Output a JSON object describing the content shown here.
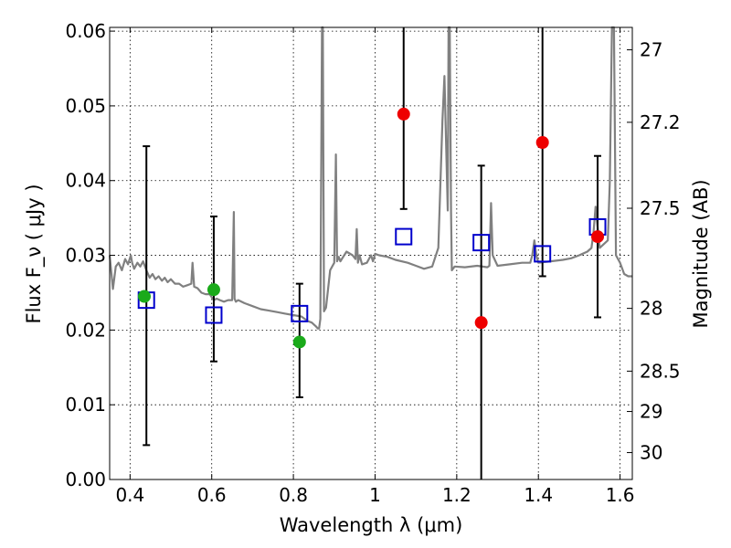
{
  "chart_data": {
    "type": "scatter",
    "title": "",
    "xlabel": "Wavelength  λ (μm)",
    "ylabel": "Flux  F_ν  ( μJy )",
    "y2label": "Magnitude (AB)",
    "xlim": [
      0.35,
      1.63
    ],
    "ylim": [
      0.0,
      0.0605
    ],
    "grid": true,
    "x_ticks": [
      0.4,
      0.6,
      0.8,
      1.0,
      1.2,
      1.4,
      1.6
    ],
    "x_tick_labels": [
      "0.4",
      "0.6",
      "0.8",
      "1",
      "1.2",
      "1.4",
      "1.6"
    ],
    "y_ticks": [
      0.0,
      0.01,
      0.02,
      0.03,
      0.04,
      0.05,
      0.06
    ],
    "y_tick_labels": [
      "0.00",
      "0.01",
      "0.02",
      "0.03",
      "0.04",
      "0.05",
      "0.06"
    ],
    "y2_ticks": [
      {
        "label": "27",
        "flux": 0.0575
      },
      {
        "label": "27.2",
        "flux": 0.0478
      },
      {
        "label": "27.5",
        "flux": 0.0363
      },
      {
        "label": "28",
        "flux": 0.0229
      },
      {
        "label": "28.5",
        "flux": 0.0145
      },
      {
        "label": "29",
        "flux": 0.0091
      },
      {
        "label": "30",
        "flux": 0.0036
      }
    ],
    "observed": {
      "marker": "open-square",
      "color": "#0000cc",
      "x": [
        0.44,
        0.605,
        0.815,
        1.07,
        1.26,
        1.41,
        1.545
      ],
      "y": [
        0.024,
        0.022,
        0.0222,
        0.0325,
        0.0317,
        0.0302,
        0.0338
      ],
      "err_low": [
        0.0046,
        0.0158,
        0.011,
        0.0362,
        0.0,
        0.0272,
        0.0217
      ],
      "err_high": [
        0.0446,
        0.0352,
        0.0262,
        0.0605,
        0.042,
        0.0605,
        0.0433
      ]
    },
    "model_green": {
      "marker": "filled-circle",
      "color": "#1aaa1a",
      "x": [
        0.435,
        0.605,
        0.815
      ],
      "y": [
        0.0245,
        0.0254,
        0.0184
      ]
    },
    "model_red": {
      "marker": "filled-circle",
      "color": "#ee0000",
      "x": [
        1.07,
        1.26,
        1.41,
        1.545
      ],
      "y": [
        0.0489,
        0.021,
        0.0451,
        0.0325
      ]
    },
    "model_spectrum": {
      "color": "#808080",
      "x": [
        0.35,
        0.358,
        0.365,
        0.372,
        0.38,
        0.388,
        0.395,
        0.402,
        0.405,
        0.41,
        0.418,
        0.425,
        0.432,
        0.44,
        0.448,
        0.455,
        0.462,
        0.47,
        0.478,
        0.485,
        0.492,
        0.5,
        0.51,
        0.52,
        0.53,
        0.54,
        0.55,
        0.553,
        0.557,
        0.565,
        0.575,
        0.585,
        0.595,
        0.6,
        0.605,
        0.612,
        0.62,
        0.63,
        0.64,
        0.65,
        0.654,
        0.656,
        0.659,
        0.665,
        0.68,
        0.7,
        0.72,
        0.74,
        0.76,
        0.78,
        0.8,
        0.82,
        0.835,
        0.845,
        0.855,
        0.86,
        0.863,
        0.866,
        0.87,
        0.872,
        0.875,
        0.88,
        0.89,
        0.9,
        0.904,
        0.907,
        0.911,
        0.915,
        0.93,
        0.945,
        0.952,
        0.955,
        0.958,
        0.962,
        0.968,
        0.98,
        0.99,
        0.995,
        1.0,
        1.01,
        1.03,
        1.05,
        1.08,
        1.1,
        1.12,
        1.14,
        1.155,
        1.165,
        1.17,
        1.174,
        1.178,
        1.18,
        1.183,
        1.186,
        1.188,
        1.195,
        1.22,
        1.25,
        1.275,
        1.28,
        1.284,
        1.288,
        1.3,
        1.33,
        1.36,
        1.38,
        1.385,
        1.39,
        1.395,
        1.4,
        1.43,
        1.46,
        1.48,
        1.5,
        1.52,
        1.53,
        1.535,
        1.54,
        1.55,
        1.57,
        1.575,
        1.58,
        1.585,
        1.59,
        1.6,
        1.61,
        1.62,
        1.63
      ],
      "y": [
        0.03,
        0.0255,
        0.0285,
        0.029,
        0.028,
        0.0295,
        0.0288,
        0.03,
        0.029,
        0.0282,
        0.029,
        0.0285,
        0.0292,
        0.028,
        0.027,
        0.0275,
        0.0268,
        0.0272,
        0.0266,
        0.027,
        0.0264,
        0.0268,
        0.0262,
        0.0262,
        0.0258,
        0.026,
        0.0262,
        0.029,
        0.0258,
        0.0256,
        0.025,
        0.0248,
        0.0248,
        0.0244,
        0.024,
        0.0242,
        0.024,
        0.0238,
        0.024,
        0.024,
        0.0358,
        0.0242,
        0.0238,
        0.024,
        0.0236,
        0.0232,
        0.0228,
        0.0226,
        0.0224,
        0.0222,
        0.022,
        0.0218,
        0.0212,
        0.021,
        0.0205,
        0.0202,
        0.0202,
        0.0215,
        0.061,
        0.061,
        0.0225,
        0.023,
        0.028,
        0.029,
        0.0435,
        0.0292,
        0.0298,
        0.0292,
        0.0305,
        0.03,
        0.0295,
        0.0335,
        0.029,
        0.03,
        0.0288,
        0.029,
        0.03,
        0.0292,
        0.0302,
        0.03,
        0.0298,
        0.0294,
        0.029,
        0.0286,
        0.0282,
        0.0285,
        0.031,
        0.048,
        0.054,
        0.045,
        0.036,
        0.061,
        0.061,
        0.036,
        0.028,
        0.0285,
        0.0284,
        0.0286,
        0.0284,
        0.0286,
        0.037,
        0.03,
        0.0286,
        0.0288,
        0.029,
        0.029,
        0.03,
        0.032,
        0.03,
        0.029,
        0.0292,
        0.0294,
        0.0296,
        0.03,
        0.0305,
        0.031,
        0.033,
        0.0365,
        0.031,
        0.032,
        0.04,
        0.061,
        0.061,
        0.03,
        0.029,
        0.0275,
        0.0272,
        0.0272
      ]
    }
  }
}
